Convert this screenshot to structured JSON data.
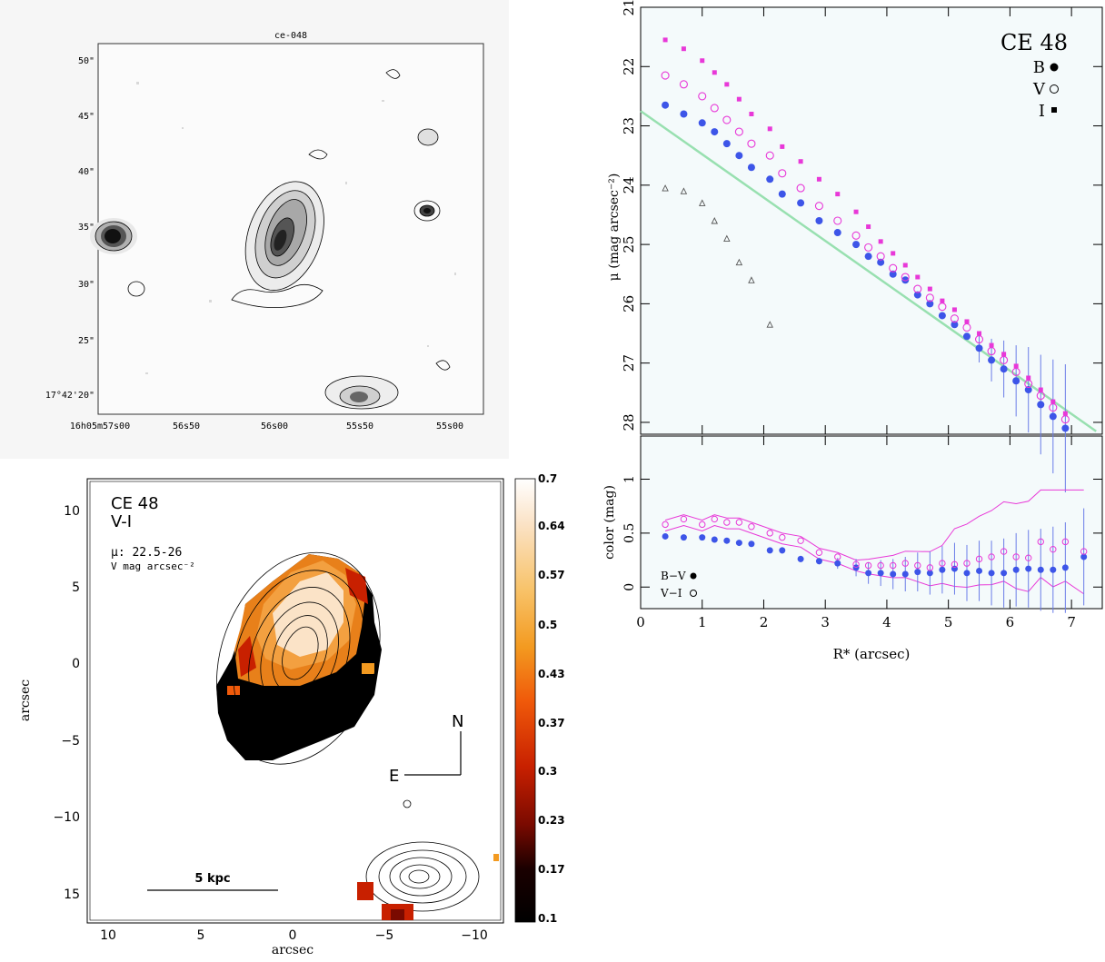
{
  "top_left": {
    "title": "ce-048",
    "dec_ticks": [
      "50\"",
      "45\"",
      "40\"",
      "35\"",
      "30\"",
      "25\"",
      "17°42'20\""
    ],
    "ra_ticks": [
      "16h05m57s00",
      "56s50",
      "56s00",
      "55s50",
      "55s00"
    ]
  },
  "bottom_left": {
    "name": "CE 48",
    "band": "V-I",
    "mu_label": "μ: 22.5-26",
    "mu_units": "V mag arcsec⁻²",
    "ylabel": "arcsec",
    "xlabel": "arcsec",
    "xticks": [
      "10",
      "5",
      "0",
      "−5",
      "−10"
    ],
    "yticks": [
      "10",
      "5",
      "0",
      "−5",
      "−10",
      "15"
    ],
    "scale_label": "5 kpc",
    "north": "N",
    "east": "E",
    "colorbar_ticks": [
      "0.7",
      "0.64",
      "0.57",
      "0.5",
      "0.43",
      "0.37",
      "0.3",
      "0.23",
      "0.17",
      "0.1"
    ]
  },
  "chart_data": [
    {
      "type": "scatter",
      "title": "CE 48",
      "ylabel": "μ (mag arcsec⁻²)",
      "ylim": [
        28.2,
        21.0
      ],
      "xlim": [
        0,
        7.5
      ],
      "yticks": [
        21,
        22,
        23,
        24,
        25,
        26,
        27,
        28
      ],
      "legend": [
        "B",
        "V",
        "I"
      ],
      "legend_position": "top-right",
      "colors": {
        "B": "#3d55e8",
        "V": "#e838d8",
        "I": "#e838d8",
        "fit": "#98e0b0",
        "tri": "#555555"
      },
      "series": [
        {
          "name": "B",
          "x": [
            0.4,
            0.7,
            1.0,
            1.2,
            1.4,
            1.6,
            1.8,
            2.1,
            2.3,
            2.6,
            2.9,
            3.2,
            3.5,
            3.7,
            3.9,
            4.1,
            4.3,
            4.5,
            4.7,
            4.9,
            5.1,
            5.3,
            5.5,
            5.7,
            5.9,
            6.1,
            6.3,
            6.5,
            6.7,
            6.9
          ],
          "y": [
            22.65,
            22.8,
            22.95,
            23.1,
            23.3,
            23.5,
            23.7,
            23.9,
            24.15,
            24.3,
            24.6,
            24.8,
            25.0,
            25.2,
            25.3,
            25.5,
            25.6,
            25.85,
            26.0,
            26.2,
            26.35,
            26.55,
            26.75,
            26.95,
            27.1,
            27.3,
            27.45,
            27.7,
            27.9,
            28.1
          ]
        },
        {
          "name": "V",
          "x": [
            0.4,
            0.7,
            1.0,
            1.2,
            1.4,
            1.6,
            1.8,
            2.1,
            2.3,
            2.6,
            2.9,
            3.2,
            3.5,
            3.7,
            3.9,
            4.1,
            4.3,
            4.5,
            4.7,
            4.9,
            5.1,
            5.3,
            5.5,
            5.7,
            5.9,
            6.1,
            6.3,
            6.5,
            6.7,
            6.9
          ],
          "y": [
            22.15,
            22.3,
            22.5,
            22.7,
            22.9,
            23.1,
            23.3,
            23.5,
            23.8,
            24.05,
            24.35,
            24.6,
            24.85,
            25.05,
            25.2,
            25.4,
            25.55,
            25.75,
            25.9,
            26.05,
            26.25,
            26.4,
            26.6,
            26.8,
            26.95,
            27.15,
            27.35,
            27.55,
            27.75,
            27.95
          ]
        },
        {
          "name": "I",
          "x": [
            0.4,
            0.7,
            1.0,
            1.2,
            1.4,
            1.6,
            1.8,
            2.1,
            2.3,
            2.6,
            2.9,
            3.2,
            3.5,
            3.7,
            3.9,
            4.1,
            4.3,
            4.5,
            4.7,
            4.9,
            5.1,
            5.3,
            5.5,
            5.7,
            5.9,
            6.1,
            6.3,
            6.5,
            6.7,
            6.9
          ],
          "y": [
            21.55,
            21.7,
            21.9,
            22.1,
            22.3,
            22.55,
            22.8,
            23.05,
            23.35,
            23.6,
            23.9,
            24.15,
            24.45,
            24.7,
            24.95,
            25.15,
            25.35,
            25.55,
            25.75,
            25.95,
            26.1,
            26.3,
            26.5,
            26.7,
            26.85,
            27.05,
            27.25,
            27.45,
            27.65,
            27.85
          ]
        },
        {
          "name": "",
          "x": [
            0.4,
            0.7,
            1.0,
            1.2,
            1.4,
            1.6,
            1.8,
            2.1
          ],
          "y": [
            24.05,
            24.1,
            24.3,
            24.6,
            24.9,
            25.3,
            25.6,
            26.35
          ]
        }
      ],
      "fit_line": {
        "x": [
          0,
          7.4
        ],
        "y": [
          22.75,
          28.15
        ]
      }
    },
    {
      "type": "scatter",
      "xlabel": "R* (arcsec)",
      "ylabel": "color (mag)",
      "xlim": [
        0,
        7.5
      ],
      "ylim": [
        -0.2,
        1.4
      ],
      "xticks": [
        0,
        1,
        2,
        3,
        4,
        5,
        6,
        7
      ],
      "yticks": [
        0,
        0.5,
        1
      ],
      "legend": [
        "B−V",
        "V−I"
      ],
      "legend_position": "bottom-left",
      "series": [
        {
          "name": "B−V",
          "x": [
            0.4,
            0.7,
            1.0,
            1.2,
            1.4,
            1.6,
            1.8,
            2.1,
            2.3,
            2.6,
            2.9,
            3.2,
            3.5,
            3.7,
            3.9,
            4.1,
            4.3,
            4.5,
            4.7,
            4.9,
            5.1,
            5.3,
            5.5,
            5.7,
            5.9,
            6.1,
            6.3,
            6.5,
            6.7,
            6.9,
            7.2
          ],
          "y": [
            0.47,
            0.46,
            0.46,
            0.44,
            0.43,
            0.41,
            0.4,
            0.34,
            0.34,
            0.26,
            0.24,
            0.22,
            0.18,
            0.13,
            0.13,
            0.12,
            0.12,
            0.14,
            0.13,
            0.16,
            0.17,
            0.13,
            0.15,
            0.13,
            0.13,
            0.16,
            0.17,
            0.16,
            0.16,
            0.18,
            0.28
          ]
        },
        {
          "name": "V−I",
          "x": [
            0.4,
            0.7,
            1.0,
            1.2,
            1.4,
            1.6,
            1.8,
            2.1,
            2.3,
            2.6,
            2.9,
            3.2,
            3.5,
            3.7,
            3.9,
            4.1,
            4.3,
            4.5,
            4.7,
            4.9,
            5.1,
            5.3,
            5.5,
            5.7,
            5.9,
            6.1,
            6.3,
            6.5,
            6.7,
            6.9,
            7.2
          ],
          "y": [
            0.58,
            0.63,
            0.58,
            0.63,
            0.6,
            0.6,
            0.56,
            0.5,
            0.46,
            0.43,
            0.32,
            0.28,
            0.21,
            0.2,
            0.2,
            0.2,
            0.22,
            0.2,
            0.18,
            0.22,
            0.21,
            0.22,
            0.26,
            0.28,
            0.33,
            0.28,
            0.27,
            0.42,
            0.35,
            0.42,
            0.33
          ]
        }
      ]
    }
  ]
}
